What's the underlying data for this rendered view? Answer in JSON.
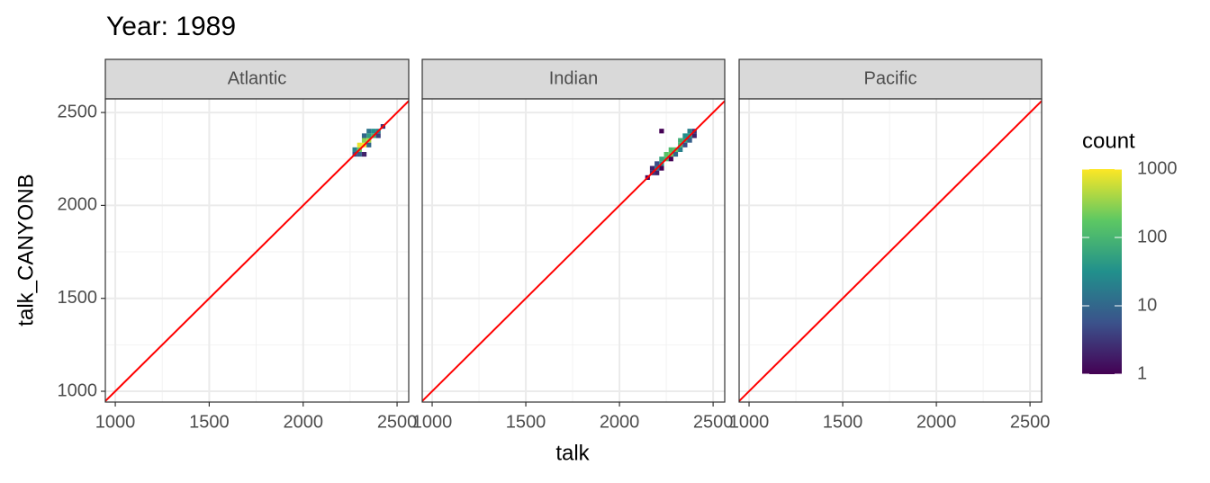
{
  "chart_data": {
    "type": "bin2d",
    "title": "Year: 1989",
    "xlabel": "talk",
    "ylabel": "talk_CANYONB",
    "xlim": [
      947,
      2562
    ],
    "ylim": [
      942,
      2573
    ],
    "xticks": [
      1000,
      1500,
      2000,
      2500
    ],
    "yticks": [
      1000,
      1500,
      2000,
      2500
    ],
    "grid": true,
    "binwidth": [
      25,
      25
    ],
    "reference_line": {
      "slope": 1,
      "intercept": 0,
      "color": "#ff0000"
    },
    "colorbar": {
      "title": "count",
      "scale": "log",
      "clim": [
        1,
        1000
      ],
      "ticks": [
        1,
        10,
        100,
        1000
      ],
      "colors": [
        "#440154",
        "#3b528b",
        "#21908c",
        "#5dc863",
        "#fde725"
      ]
    },
    "facets": [
      {
        "name": "Atlantic",
        "x": [
          2275,
          2275,
          2300,
          2300,
          2325,
          2325,
          2350,
          2350,
          2375,
          2375,
          2400,
          2425,
          2325,
          2300,
          2350,
          2325,
          2400,
          2350
        ],
        "y": [
          2275,
          2300,
          2300,
          2325,
          2325,
          2350,
          2350,
          2375,
          2375,
          2400,
          2400,
          2425,
          2275,
          2275,
          2325,
          2375,
          2375,
          2400
        ],
        "count": [
          5,
          20,
          200,
          800,
          1000,
          300,
          400,
          50,
          100,
          30,
          20,
          3,
          2,
          8,
          10,
          10,
          4,
          15
        ]
      },
      {
        "name": "Indian",
        "x": [
          2150,
          2175,
          2175,
          2200,
          2200,
          2225,
          2225,
          2250,
          2250,
          2275,
          2275,
          2300,
          2325,
          2325,
          2350,
          2350,
          2375,
          2375,
          2400,
          2200,
          2225,
          2275,
          2300,
          2325,
          2350,
          2375,
          2400,
          2225
        ],
        "y": [
          2150,
          2175,
          2200,
          2200,
          2225,
          2225,
          2250,
          2250,
          2275,
          2275,
          2300,
          2300,
          2325,
          2350,
          2350,
          2375,
          2375,
          2400,
          2400,
          2175,
          2200,
          2250,
          2275,
          2300,
          2325,
          2350,
          2375,
          2400
        ],
        "count": [
          1,
          3,
          2,
          15,
          5,
          30,
          60,
          100,
          150,
          200,
          120,
          150,
          100,
          80,
          50,
          30,
          40,
          20,
          3,
          2,
          1,
          1,
          10,
          20,
          5,
          8,
          2,
          1
        ]
      },
      {
        "name": "Pacific",
        "x": [],
        "y": [],
        "count": []
      }
    ]
  }
}
